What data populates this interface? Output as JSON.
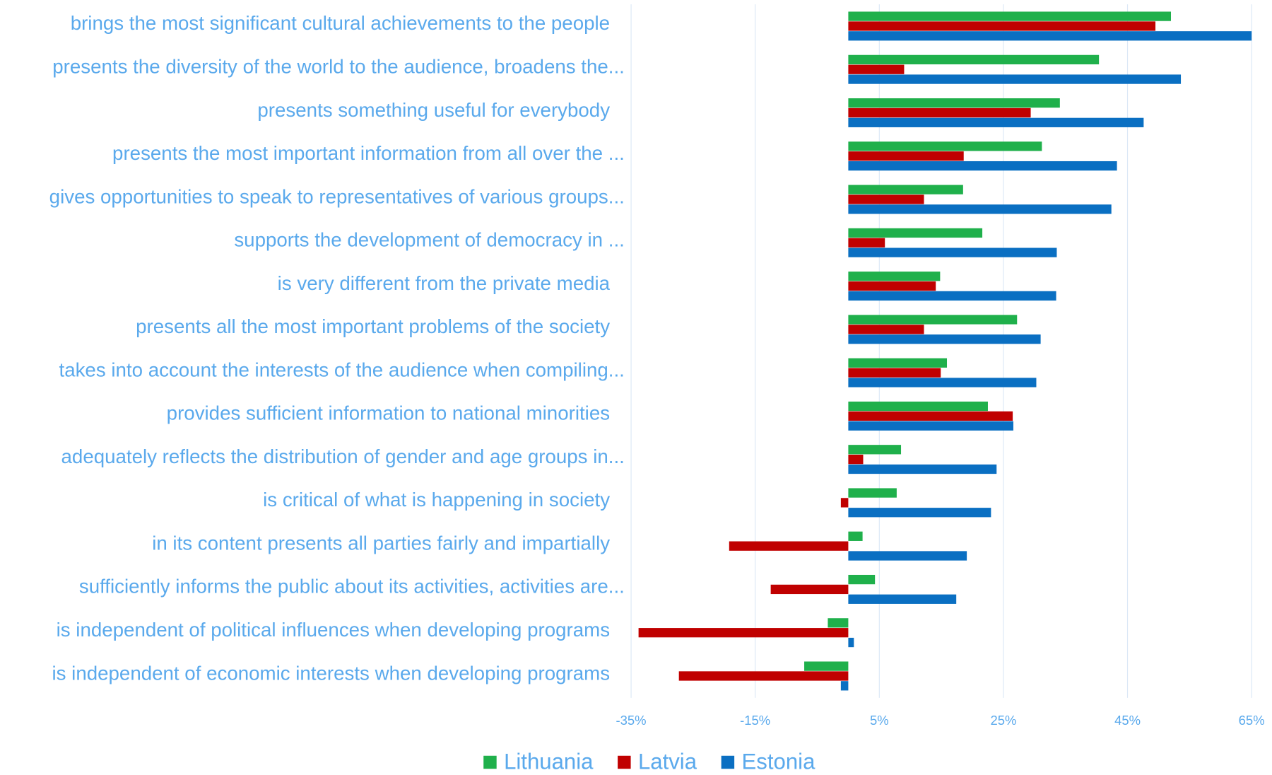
{
  "chart_data": {
    "type": "barh",
    "categories": [
      "brings the most significant cultural achievements to the people",
      "presents the diversity of the world to the audience, broadens the...",
      "presents something useful for everybody",
      "presents the most important information from all over the ...",
      "gives opportunities to speak to representatives of various groups...",
      "supports the development of democracy in ...",
      "is very different from the private media",
      "presents all the most important problems of the society",
      "takes into account the interests of the audience when compiling...",
      "provides sufficient information to national minorities",
      "adequately reflects the distribution of gender and age groups in...",
      "is critical of what is happening in society",
      "in its content presents all parties fairly and impartially",
      "sufficiently informs the public about its activities, activities are...",
      "is independent of political influences when developing programs",
      "is independent of economic interests when developing programs"
    ],
    "series": [
      {
        "name": "Lithuania",
        "color": "#1fb04b",
        "values": [
          52.0,
          40.4,
          34.1,
          31.2,
          18.5,
          21.6,
          14.8,
          27.2,
          15.9,
          22.5,
          8.5,
          7.8,
          2.3,
          4.3,
          -3.3,
          -7.1
        ]
      },
      {
        "name": "Latvia",
        "color": "#c00000",
        "values": [
          49.5,
          9.0,
          29.4,
          18.6,
          12.2,
          5.9,
          14.1,
          12.2,
          14.9,
          26.5,
          2.4,
          -1.2,
          -19.2,
          -12.5,
          -33.8,
          -27.3
        ]
      },
      {
        "name": "Estonia",
        "color": "#0a6fc2",
        "values": [
          65.0,
          53.6,
          47.6,
          43.3,
          42.4,
          33.6,
          33.5,
          31.0,
          30.3,
          26.6,
          23.9,
          23.0,
          19.1,
          17.4,
          0.9,
          -1.2
        ]
      }
    ],
    "xlim": [
      -35,
      65
    ],
    "xticks": [
      {
        "value": -35,
        "label": "-35%"
      },
      {
        "value": -15,
        "label": "-15%"
      },
      {
        "value": 5,
        "label": "5%"
      },
      {
        "value": 25,
        "label": "25%"
      },
      {
        "value": 45,
        "label": "45%"
      },
      {
        "value": 65,
        "label": "65%"
      }
    ],
    "grid": true,
    "legend": "bottom"
  }
}
